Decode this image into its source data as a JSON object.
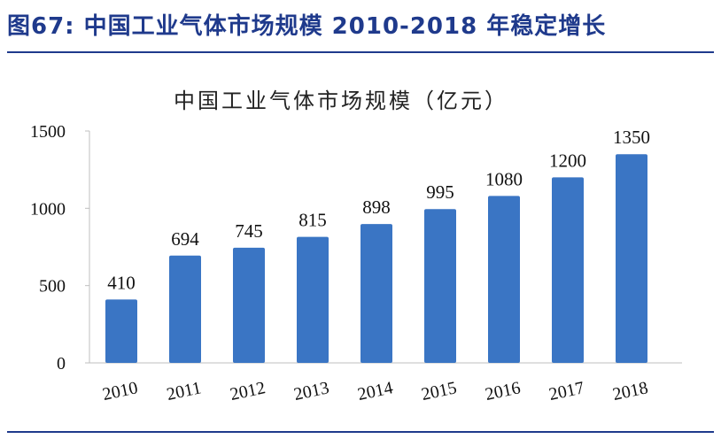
{
  "figure_title": "图67:  中国工业气体市场规模 2010-2018 年稳定增长",
  "chart_data": {
    "type": "bar",
    "title": "中国工业气体市场规模（亿元）",
    "categories": [
      "2010",
      "2011",
      "2012",
      "2013",
      "2014",
      "2015",
      "2016",
      "2017",
      "2018"
    ],
    "values": [
      410,
      694,
      745,
      815,
      898,
      995,
      1080,
      1200,
      1350
    ],
    "ylim": [
      0,
      1500
    ],
    "yticks": [
      0,
      500,
      1000,
      1500
    ],
    "bar_color": "#3a75c4",
    "grid": false,
    "legend": "none"
  }
}
